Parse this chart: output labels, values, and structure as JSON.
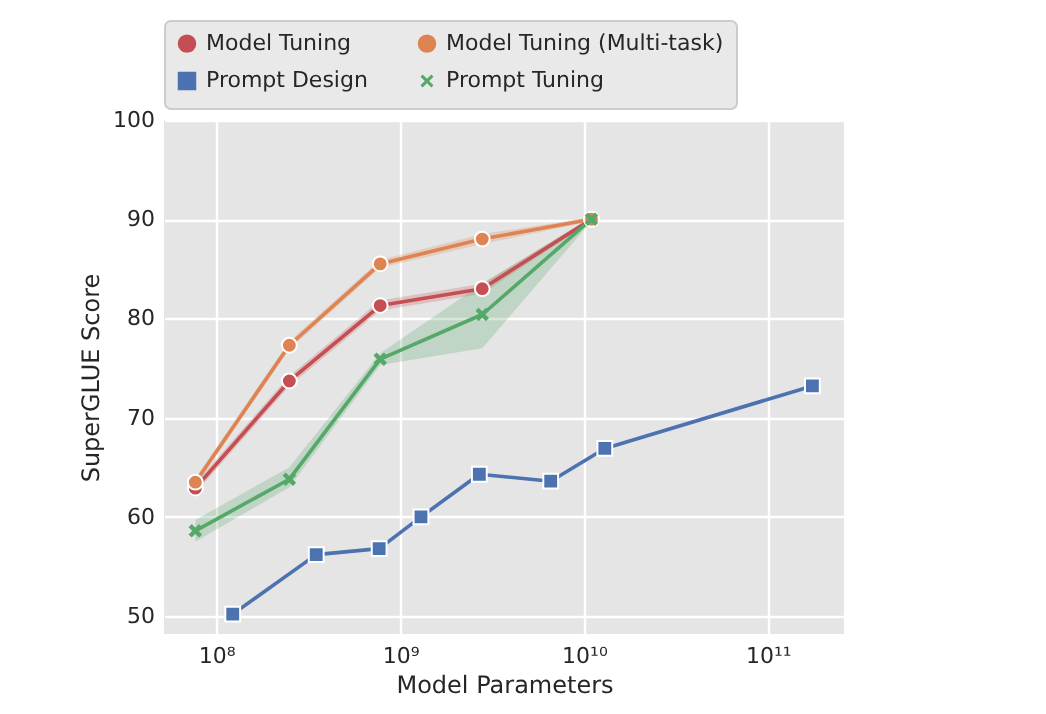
{
  "chart_data": {
    "type": "line",
    "xlabel": "Model Parameters",
    "ylabel": "SuperGLUE Score",
    "log": "x",
    "grid": true,
    "legend": "top",
    "marker": "circle",
    "xlim": [
      52000000,
      260000000000
    ],
    "ylim": [
      48.2,
      100
    ],
    "xticks": [
      {
        "value": 100000000,
        "label": "10⁸"
      },
      {
        "value": 1000000000,
        "label": "10⁹"
      },
      {
        "value": 10000000000,
        "label": "10¹⁰"
      },
      {
        "value": 100000000000,
        "label": "10¹¹"
      }
    ],
    "yticks": [
      50,
      60,
      70,
      80,
      90,
      100
    ],
    "series": [
      {
        "name": "Model Tuning",
        "color": "#c44e52",
        "marker": "circle",
        "x": [
          77000000,
          250000000,
          780000000,
          2800000000,
          11000000000
        ],
        "values": [
          62.9,
          73.7,
          81.3,
          83.0,
          90.0
        ],
        "lower": [
          62.4,
          73.2,
          80.8,
          82.5,
          89.8
        ],
        "upper": [
          63.4,
          74.2,
          81.8,
          83.5,
          90.2
        ]
      },
      {
        "name": "Model Tuning (Multi-task)",
        "color": "#dd8452",
        "x": [
          77000000,
          250000000,
          780000000,
          2800000000,
          11000000000
        ],
        "values": [
          63.5,
          77.3,
          85.5,
          88.0,
          90.0
        ],
        "lower": [
          63.1,
          76.9,
          85.1,
          87.5,
          89.8
        ],
        "upper": [
          63.9,
          77.7,
          85.9,
          88.5,
          90.2
        ]
      },
      {
        "name": "Prompt Design",
        "color": "#4c72b0",
        "marker": "square",
        "x": [
          123000000,
          350000000,
          770000000,
          1300000000,
          2700000000,
          6600000000,
          13000000000,
          175000000000
        ],
        "values": [
          50.2,
          56.2,
          56.8,
          60.0,
          64.3,
          63.6,
          66.9,
          73.2
        ]
      },
      {
        "name": "Prompt Tuning",
        "color": "#55a868",
        "marker": "cross",
        "x": [
          77000000,
          250000000,
          780000000,
          2800000000,
          11000000000
        ],
        "values": [
          58.6,
          63.8,
          75.9,
          80.4,
          90.0
        ],
        "lower": [
          57.5,
          63.0,
          75.3,
          77.0,
          89.8
        ],
        "upper": [
          59.7,
          65.0,
          76.5,
          83.5,
          90.2
        ]
      }
    ]
  }
}
